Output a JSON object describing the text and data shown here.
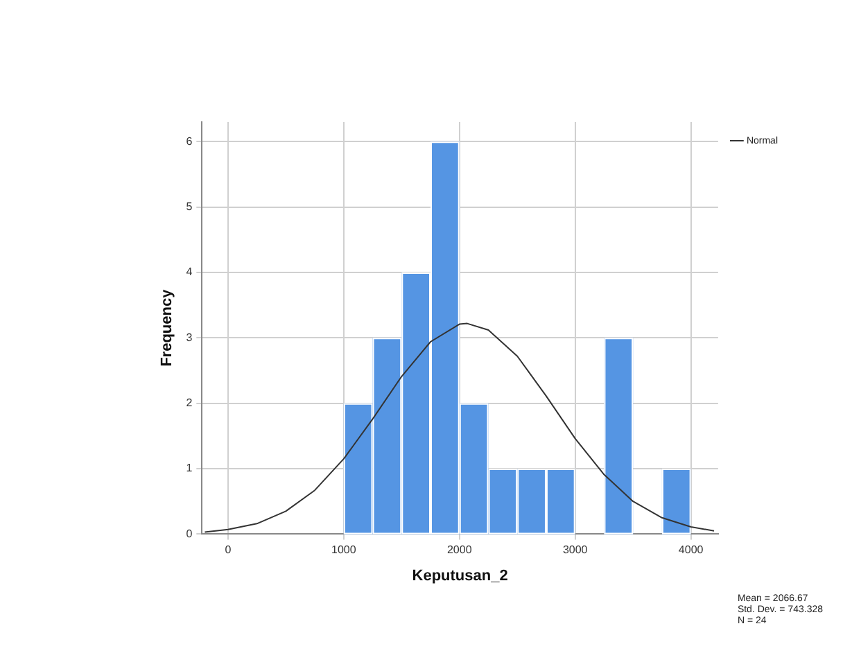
{
  "chart_data": {
    "type": "histogram",
    "xlabel": "Keputusan_2",
    "ylabel": "Frequency",
    "bins": [
      1000,
      1250,
      1500,
      1750,
      2000,
      2250,
      2500,
      2750,
      3000,
      3250,
      3500,
      3750,
      4000
    ],
    "values": [
      2,
      3,
      4,
      6,
      2,
      1,
      1,
      1,
      0,
      3,
      0,
      1
    ],
    "color": "#5595e3",
    "series": [
      {
        "type": "line",
        "name": "Normal",
        "color": "#333333",
        "x": [
          -200,
          0,
          250,
          500,
          750,
          1000,
          1250,
          1500,
          1750,
          2000,
          2067,
          2250,
          2500,
          2750,
          3000,
          3250,
          3500,
          3750,
          4000,
          4200
        ],
        "values": [
          0.03,
          0.07,
          0.16,
          0.35,
          0.67,
          1.15,
          1.76,
          2.41,
          2.94,
          3.21,
          3.22,
          3.12,
          2.72,
          2.11,
          1.46,
          0.91,
          0.5,
          0.25,
          0.11,
          0.05
        ]
      }
    ],
    "xlim": [
      -225,
      4235
    ],
    "xticks": [
      0,
      1000,
      2000,
      3000,
      4000
    ],
    "ylim": [
      0,
      6.3
    ],
    "yticks": [
      0,
      1,
      2,
      3,
      4,
      5,
      6
    ],
    "grid": true,
    "legend": "top right",
    "marker": "none",
    "line_style": "solid",
    "annotations": [
      "Mean = 2066.67",
      "Std. Dev. = 743.328",
      "N = 24"
    ]
  }
}
